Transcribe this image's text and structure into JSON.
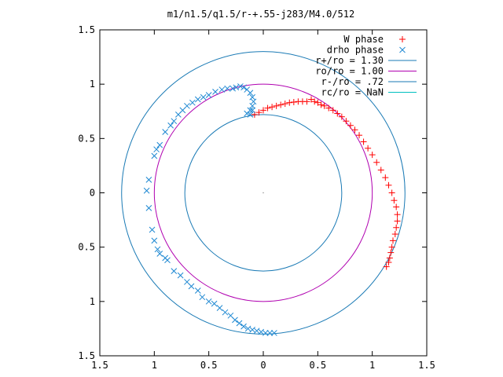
{
  "chart_data": {
    "type": "scatter",
    "title": "m1/n1.5/q1.5/r-+.55-j283/M4.0/512",
    "xlabel": "",
    "ylabel": "",
    "xlim": [
      -1.5,
      1.5
    ],
    "ylim": [
      -1.5,
      1.5
    ],
    "x_ticks": [
      {
        "value": -1.5,
        "label": "1.5"
      },
      {
        "value": -1.0,
        "label": "1"
      },
      {
        "value": -0.5,
        "label": "0.5"
      },
      {
        "value": 0,
        "label": "0"
      },
      {
        "value": 0.5,
        "label": "0.5"
      },
      {
        "value": 1.0,
        "label": "1"
      },
      {
        "value": 1.5,
        "label": "1.5"
      }
    ],
    "y_ticks": [
      {
        "value": 1.5,
        "label": "1.5"
      },
      {
        "value": 1.0,
        "label": "1"
      },
      {
        "value": 0.5,
        "label": "0.5"
      },
      {
        "value": 0,
        "label": "0"
      },
      {
        "value": -0.5,
        "label": "0.5"
      },
      {
        "value": -1.0,
        "label": "1"
      },
      {
        "value": -1.5,
        "label": "1.5"
      }
    ],
    "grid": false,
    "legend_position": "top-right",
    "series": [
      {
        "name": "W phase",
        "marker": "+",
        "color": "#ff0000",
        "points": [
          [
            -0.08,
            0.72
          ],
          [
            -0.04,
            0.74
          ],
          [
            0.0,
            0.76
          ],
          [
            0.04,
            0.78
          ],
          [
            0.08,
            0.79
          ],
          [
            0.12,
            0.8
          ],
          [
            0.16,
            0.81
          ],
          [
            0.2,
            0.82
          ],
          [
            0.24,
            0.83
          ],
          [
            0.28,
            0.835
          ],
          [
            0.32,
            0.84
          ],
          [
            0.36,
            0.84
          ],
          [
            0.4,
            0.84
          ],
          [
            0.44,
            0.86
          ],
          [
            0.47,
            0.84
          ],
          [
            0.5,
            0.83
          ],
          [
            0.53,
            0.81
          ],
          [
            0.56,
            0.8
          ],
          [
            0.6,
            0.78
          ],
          [
            0.64,
            0.76
          ],
          [
            0.68,
            0.73
          ],
          [
            0.72,
            0.7
          ],
          [
            0.76,
            0.66
          ],
          [
            0.8,
            0.62
          ],
          [
            0.84,
            0.58
          ],
          [
            0.88,
            0.53
          ],
          [
            0.92,
            0.47
          ],
          [
            0.96,
            0.41
          ],
          [
            1.0,
            0.35
          ],
          [
            1.04,
            0.28
          ],
          [
            1.08,
            0.21
          ],
          [
            1.12,
            0.14
          ],
          [
            1.15,
            0.07
          ],
          [
            1.18,
            0.0
          ],
          [
            1.2,
            -0.07
          ],
          [
            1.22,
            -0.13
          ],
          [
            1.23,
            -0.2
          ],
          [
            1.23,
            -0.26
          ],
          [
            1.22,
            -0.32
          ],
          [
            1.21,
            -0.38
          ],
          [
            1.19,
            -0.44
          ],
          [
            1.18,
            -0.5
          ],
          [
            1.17,
            -0.55
          ],
          [
            1.16,
            -0.6
          ],
          [
            1.15,
            -0.64
          ],
          [
            1.13,
            -0.68
          ]
        ]
      },
      {
        "name": "drho phase",
        "marker": "x",
        "color": "#1e88d2",
        "points": [
          [
            -0.1,
            0.76
          ],
          [
            -0.12,
            0.72
          ],
          [
            -0.15,
            0.73
          ],
          [
            -0.12,
            0.76
          ],
          [
            -0.1,
            0.8
          ],
          [
            -0.09,
            0.84
          ],
          [
            -0.1,
            0.88
          ],
          [
            -0.12,
            0.92
          ],
          [
            -0.15,
            0.95
          ],
          [
            -0.18,
            0.97
          ],
          [
            -0.21,
            0.98
          ],
          [
            -0.25,
            0.97
          ],
          [
            -0.28,
            0.96
          ],
          [
            -0.33,
            0.96
          ],
          [
            -0.38,
            0.95
          ],
          [
            -0.44,
            0.93
          ],
          [
            -0.5,
            0.9
          ],
          [
            -0.55,
            0.88
          ],
          [
            -0.6,
            0.86
          ],
          [
            -0.65,
            0.83
          ],
          [
            -0.7,
            0.8
          ],
          [
            -0.74,
            0.76
          ],
          [
            -0.78,
            0.72
          ],
          [
            -0.82,
            0.66
          ],
          [
            -0.85,
            0.62
          ],
          [
            -0.9,
            0.56
          ],
          [
            -0.95,
            0.44
          ],
          [
            -0.98,
            0.4
          ],
          [
            -1.0,
            0.34
          ],
          [
            -1.05,
            0.12
          ],
          [
            -1.07,
            0.02
          ],
          [
            -1.05,
            -0.14
          ],
          [
            -1.02,
            -0.34
          ],
          [
            -1.0,
            -0.44
          ],
          [
            -0.97,
            -0.52
          ],
          [
            -0.95,
            -0.56
          ],
          [
            -0.9,
            -0.6
          ],
          [
            -0.88,
            -0.62
          ],
          [
            -0.82,
            -0.72
          ],
          [
            -0.76,
            -0.76
          ],
          [
            -0.7,
            -0.82
          ],
          [
            -0.66,
            -0.86
          ],
          [
            -0.6,
            -0.9
          ],
          [
            -0.56,
            -0.96
          ],
          [
            -0.5,
            -1.0
          ],
          [
            -0.45,
            -1.02
          ],
          [
            -0.4,
            -1.06
          ],
          [
            -0.35,
            -1.1
          ],
          [
            -0.3,
            -1.13
          ],
          [
            -0.26,
            -1.17
          ],
          [
            -0.22,
            -1.2
          ],
          [
            -0.18,
            -1.23
          ],
          [
            -0.14,
            -1.25
          ],
          [
            -0.1,
            -1.26
          ],
          [
            -0.06,
            -1.27
          ],
          [
            -0.02,
            -1.28
          ],
          [
            0.02,
            -1.29
          ],
          [
            0.06,
            -1.29
          ],
          [
            0.1,
            -1.29
          ]
        ]
      },
      {
        "name": "r+/ro = 1.30",
        "type": "circle",
        "radius": 1.3,
        "color": "#1a7ab5",
        "label": "r+/ro = 1.30"
      },
      {
        "name": "ro/ro = 1.00",
        "type": "circle",
        "radius": 1.0,
        "color": "#b000b0",
        "label": "ro/ro = 1.00"
      },
      {
        "name": "r-/ro = .72",
        "type": "circle",
        "radius": 0.72,
        "color": "#1a7ab5",
        "label": "r-/ro = .72"
      },
      {
        "name": "rc/ro = NaN",
        "type": "line",
        "color": "#00c0c0",
        "label": "rc/ro = NaN"
      }
    ]
  }
}
